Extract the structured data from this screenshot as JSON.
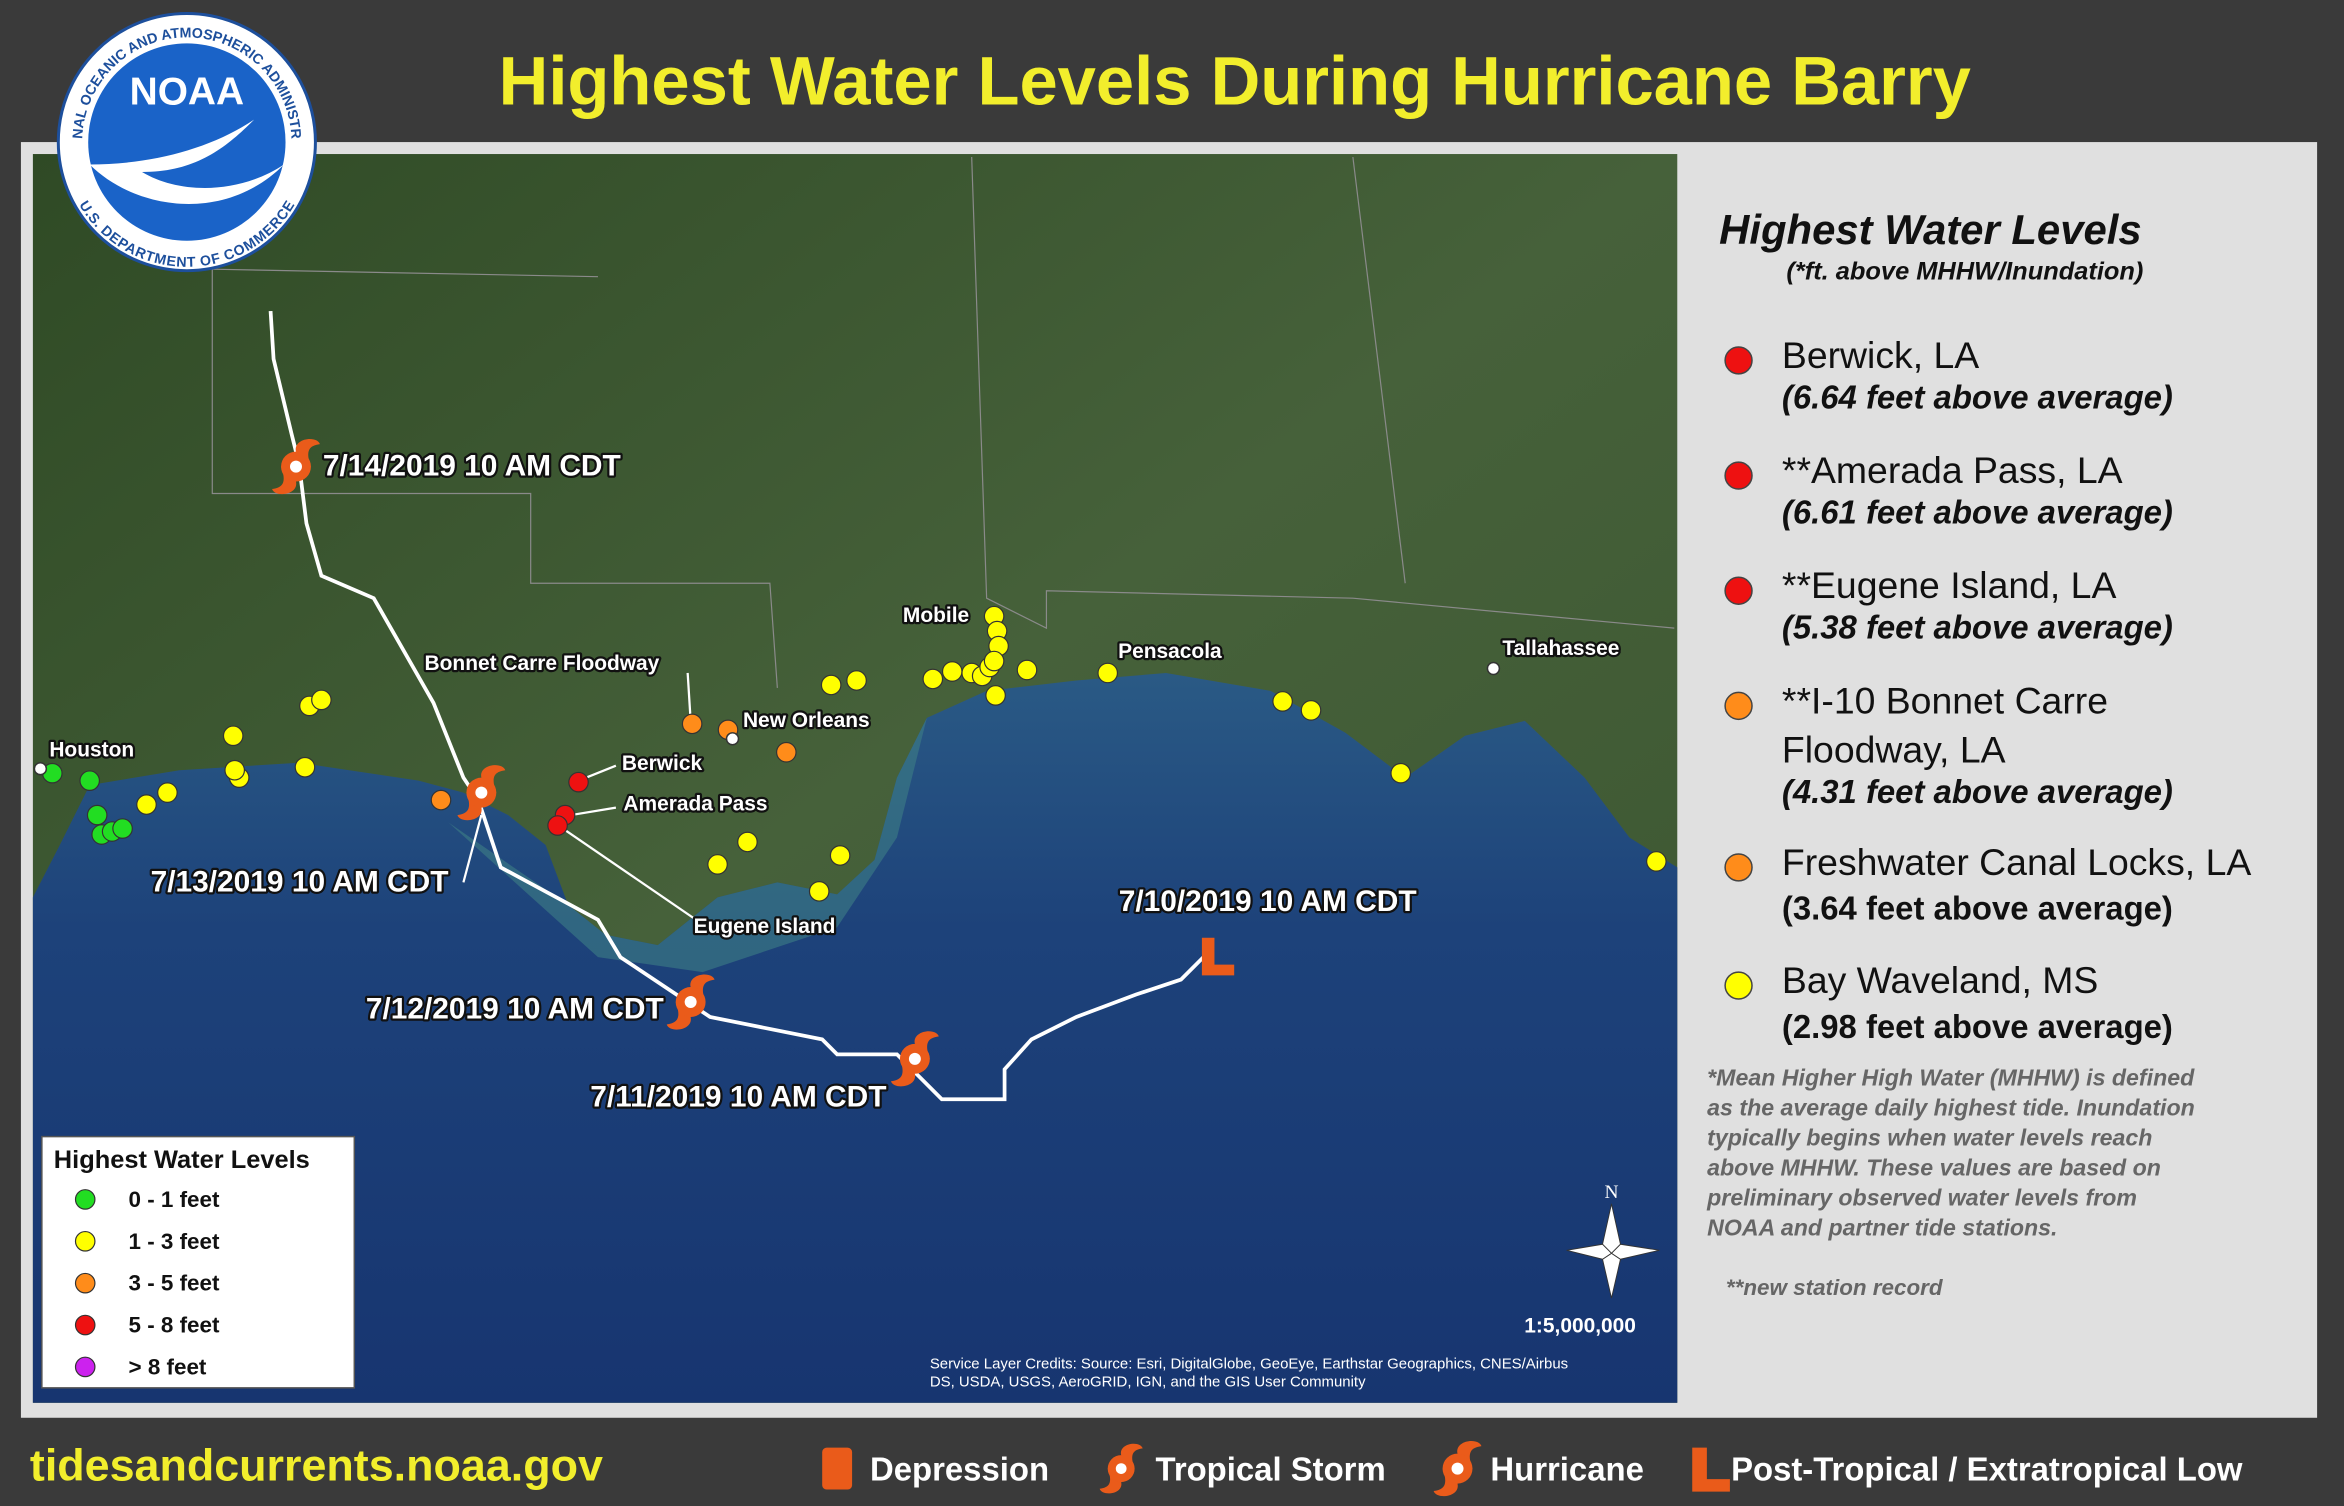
{
  "header": {
    "title": "Highest Water Levels During Hurricane Barry"
  },
  "logo": {
    "name": "NOAA",
    "ring_top": "NATIONAL OCEANIC AND ATMOSPHERIC ADMINISTRATION",
    "ring_bottom": "U.S. DEPARTMENT OF COMMERCE"
  },
  "map": {
    "track_labels": [
      "7/14/2019 10 AM CDT",
      "7/13/2019 10 AM CDT",
      "7/12/2019 10 AM CDT",
      "7/11/2019 10 AM CDT",
      "7/10/2019 10 AM CDT"
    ],
    "place_labels": [
      "Houston",
      "Bonnet Carre Floodway",
      "New Orleans",
      "Berwick",
      "Amerada Pass",
      "Eugene Island",
      "Mobile",
      "Pensacola",
      "Tallahassee"
    ],
    "legend": {
      "title": "Highest Water Levels",
      "items": [
        "0 - 1 feet",
        "1 - 3 feet",
        "3 - 5 feet",
        "5 - 8 feet",
        "> 8 feet"
      ],
      "colors": [
        "#22dd22",
        "#ffff00",
        "#ff8c1a",
        "#ee1111",
        "#cc22ee"
      ]
    },
    "north": "N",
    "scale": "1:5,000,000",
    "credits": [
      "Service Layer Credits:  Source: Esri, DigitalGlobe, GeoEye, Earthstar Geographics, CNES/Airbus",
      "DS, USDA, USGS, AeroGRID, IGN, and the GIS User Community"
    ]
  },
  "sidebar": {
    "title": "Highest Water Levels",
    "subtitle": "(*ft. above MHHW/Inundation)",
    "stations": [
      {
        "name": [
          "Berwick, LA"
        ],
        "detail": "(6.64 feet above average)",
        "italic": true,
        "color": "#ee1111"
      },
      {
        "name": [
          "**Amerada Pass, LA"
        ],
        "detail": "(6.61 feet above average)",
        "italic": true,
        "color": "#ee1111"
      },
      {
        "name": [
          "**Eugene Island, LA"
        ],
        "detail": "(5.38 feet above average)",
        "italic": true,
        "color": "#ee1111"
      },
      {
        "name": [
          "**I-10 Bonnet Carre",
          "Floodway, LA"
        ],
        "detail": "(4.31 feet above average)",
        "italic": true,
        "color": "#ff8c1a"
      },
      {
        "name": [
          "Freshwater Canal Locks, LA"
        ],
        "detail": "(3.64 feet above average)",
        "italic": false,
        "color": "#ff8c1a"
      },
      {
        "name": [
          "Bay Waveland, MS"
        ],
        "detail": "(2.98 feet above average)",
        "italic": false,
        "color": "#ffff00"
      }
    ],
    "note": [
      "*Mean Higher High Water (MHHW) is defined",
      "as the average daily highest tide. Inundation",
      "typically begins when water levels reach",
      "above MHHW. These values are based on",
      "preliminary observed water levels from",
      "NOAA and partner tide stations."
    ],
    "record": "**new station record"
  },
  "footer": {
    "website": "tidesandcurrents.noaa.gov",
    "legend": [
      "Depression",
      "Tropical Storm",
      "Hurricane",
      "Post-Tropical / Extratropical Low"
    ]
  }
}
